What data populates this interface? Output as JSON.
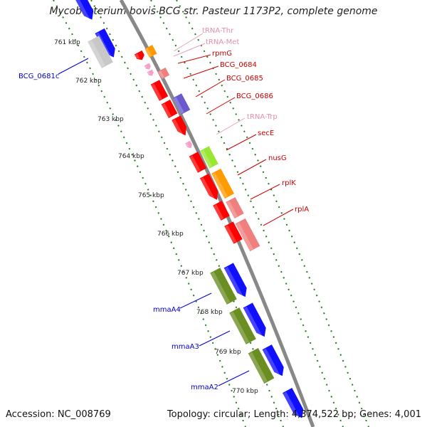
{
  "header": {
    "title": "Mycobacterium bovis BCG str. Pasteur 1173P2, complete genome"
  },
  "footer": {
    "accession": "Accession: NC_008769",
    "summary": "Topology: circular; Length: 4,374,522 bp; Genes: 4,001"
  },
  "colors": {
    "backbone": "#888888",
    "tick": "#1e7a1e",
    "red_gene": "#ff0000",
    "pink_gene": "#f08080",
    "orange_gene": "#ff9a00",
    "purple_gene": "#6a5acd",
    "lime_gene": "#99e633",
    "olive_gene": "#6b8e23",
    "blue_gene": "#1010ff",
    "gray_gene": "#c8c8c8",
    "trna": "#f4a0c8",
    "label_blue": "#0000cc",
    "label_red": "#cc0000",
    "label_pink": "#e090b0"
  },
  "kbp_ticks": [
    "761 kbp",
    "762 kbp",
    "763 kbp",
    "764 kbp",
    "765 kbp",
    "766 kbp",
    "767 kbp",
    "768 kbp",
    "769 kbp",
    "770 kbp"
  ],
  "gene_labels": {
    "tRNA_Thr": "tRNA-Thr",
    "tRNA_Met": "tRNA-Met",
    "rpmG": "rpmG",
    "BCG_0684": "BCG_0684",
    "BCG_0685": "BCG_0685",
    "BCG_0686": "BCG_0686",
    "tRNA_Trp": "tRNA-Trp",
    "secE": "secE",
    "nusG": "nusG",
    "rplK": "rplK",
    "rplA": "rplA",
    "BCG_0681c": "BCG_0681c",
    "mmaA4": "mmaA4",
    "mmaA3": "mmaA3",
    "mmaA2": "mmaA2"
  }
}
